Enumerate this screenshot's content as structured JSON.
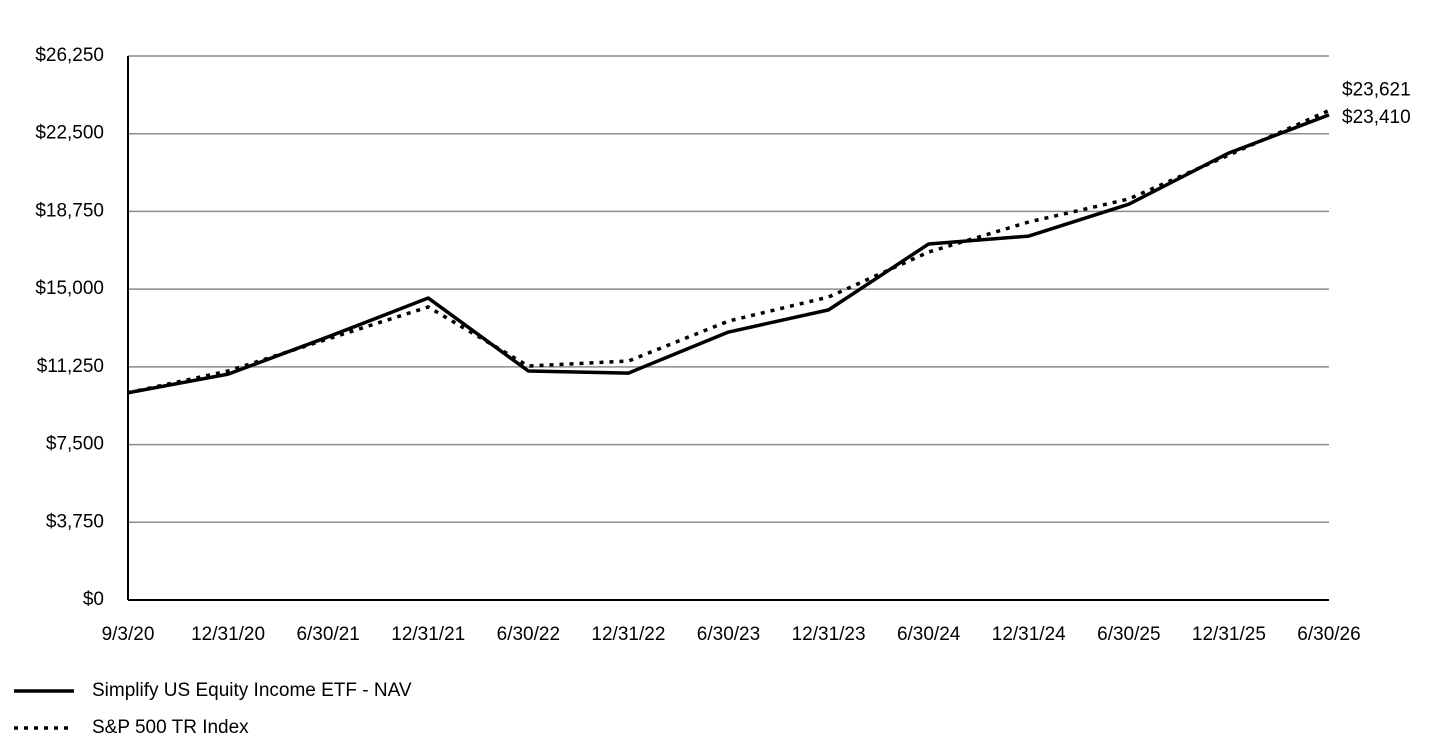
{
  "chart_data": {
    "type": "line",
    "categories": [
      "9/3/20",
      "12/31/20",
      "6/30/21",
      "12/31/21",
      "6/30/22",
      "12/31/22",
      "6/30/23",
      "12/31/23",
      "6/30/24",
      "12/31/24",
      "6/30/25",
      "12/31/25",
      "6/30/26"
    ],
    "series": [
      {
        "name": "Simplify US Equity Income ETF - NAV",
        "color": "#000000",
        "dash": "solid",
        "values": [
          10000,
          10900,
          12700,
          14570,
          11050,
          10950,
          12930,
          14000,
          17180,
          17560,
          19100,
          21570,
          23410
        ],
        "value_labels": [
          null,
          null,
          null,
          null,
          null,
          null,
          null,
          null,
          null,
          null,
          null,
          null,
          "$23,410"
        ]
      },
      {
        "name": "S&P 500 TR Index",
        "color": "#000000",
        "dash": "dotted",
        "values": [
          10000,
          11050,
          12600,
          14140,
          11290,
          11530,
          13460,
          14620,
          16790,
          18240,
          19350,
          21470,
          23621
        ],
        "value_labels": [
          null,
          null,
          null,
          null,
          null,
          null,
          null,
          null,
          null,
          null,
          null,
          null,
          "$23,621"
        ]
      }
    ],
    "ylim": [
      0,
      26250
    ],
    "yticks": [
      {
        "value": 0,
        "label": "$0"
      },
      {
        "value": 3750,
        "label": "$3,750"
      },
      {
        "value": 7500,
        "label": "$7,500"
      },
      {
        "value": 11250,
        "label": "$11,250"
      },
      {
        "value": 15000,
        "label": "$15,000"
      },
      {
        "value": 18750,
        "label": "$18,750"
      },
      {
        "value": 22500,
        "label": "$22,500"
      },
      {
        "value": 26250,
        "label": "$26,250"
      }
    ],
    "grid": true
  }
}
